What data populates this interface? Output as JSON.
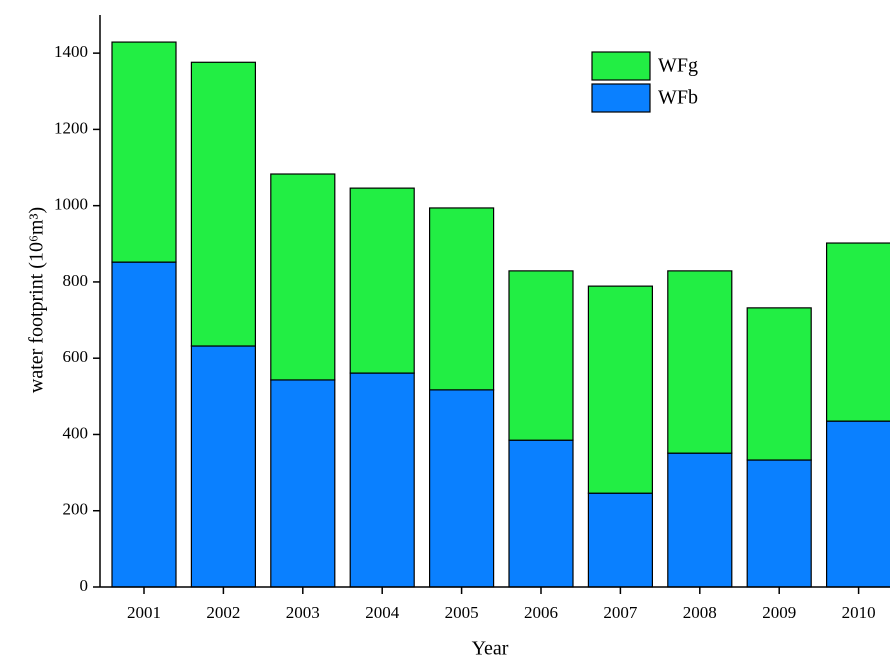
{
  "chart_data": {
    "type": "stacked_bar",
    "x_label": "Year",
    "y_label": "water footprint (10⁶m³)",
    "categories": [
      "2001",
      "2002",
      "2003",
      "2004",
      "2005",
      "2006",
      "2007",
      "2008",
      "2009",
      "2010"
    ],
    "series": [
      {
        "name": "WFb",
        "color": "#0a80ff",
        "values": [
          852,
          632,
          543,
          561,
          517,
          385,
          246,
          351,
          333,
          435
        ]
      },
      {
        "name": "WFg",
        "color": "#22ee44",
        "values": [
          577,
          744,
          540,
          485,
          477,
          444,
          543,
          478,
          399,
          467
        ]
      }
    ],
    "ylim": [
      0,
      1500
    ],
    "yticks": [
      0,
      200,
      400,
      600,
      800,
      1000,
      1200,
      1400
    ],
    "legend": "upper-right"
  }
}
